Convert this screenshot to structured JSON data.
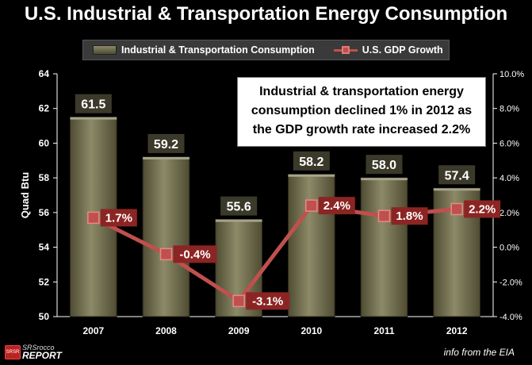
{
  "title": "U.S. Industrial & Transportation Energy Consumption",
  "legend": {
    "bar_label": "Industrial & Transportation Consumption",
    "line_label": "U.S. GDP Growth"
  },
  "note": {
    "line1": "Industrial & transportation energy",
    "line2": "consumption declined 1% in 2012 as",
    "line3": "the GDP growth rate increased 2.2%"
  },
  "footer": {
    "logo_top": "SRSrocco",
    "logo_bottom": "REPORT",
    "logo_badge": "SRSR",
    "source": "info from the EIA"
  },
  "chart_data": {
    "type": "bar",
    "categories": [
      "2007",
      "2008",
      "2009",
      "2010",
      "2011",
      "2012"
    ],
    "series": [
      {
        "name": "Industrial & Transportation Consumption",
        "type": "bar",
        "axis": "left",
        "values": [
          61.5,
          59.2,
          55.6,
          58.2,
          58.0,
          57.4
        ],
        "labels": [
          "61.5",
          "59.2",
          "55.6",
          "58.2",
          "58.0",
          "57.4"
        ]
      },
      {
        "name": "U.S. GDP Growth",
        "type": "line",
        "axis": "right",
        "values": [
          1.7,
          -0.4,
          -3.1,
          2.4,
          1.8,
          2.2
        ],
        "labels": [
          "1.7%",
          "-0.4%",
          "-3.1%",
          "2.4%",
          "1.8%",
          "2.2%"
        ]
      }
    ],
    "ylabel": "Quad Btu",
    "ylim": [
      50,
      64
    ],
    "yticks": [
      "50",
      "52",
      "54",
      "56",
      "58",
      "60",
      "62",
      "64"
    ],
    "y2lim": [
      -4.0,
      10.0
    ],
    "y2ticks": [
      "-4.0%",
      "-2.0%",
      "0.0%",
      "2.0%",
      "4.0%",
      "6.0%",
      "8.0%",
      "10.0%"
    ],
    "grid": false,
    "legend_position": "top",
    "colors": {
      "bar_top": "#8c8a68",
      "bar_bottom": "#4f4c33",
      "line": "#c0504d",
      "label_bg": "#3b3a2a",
      "line_label_bg": "#8b2523"
    }
  }
}
